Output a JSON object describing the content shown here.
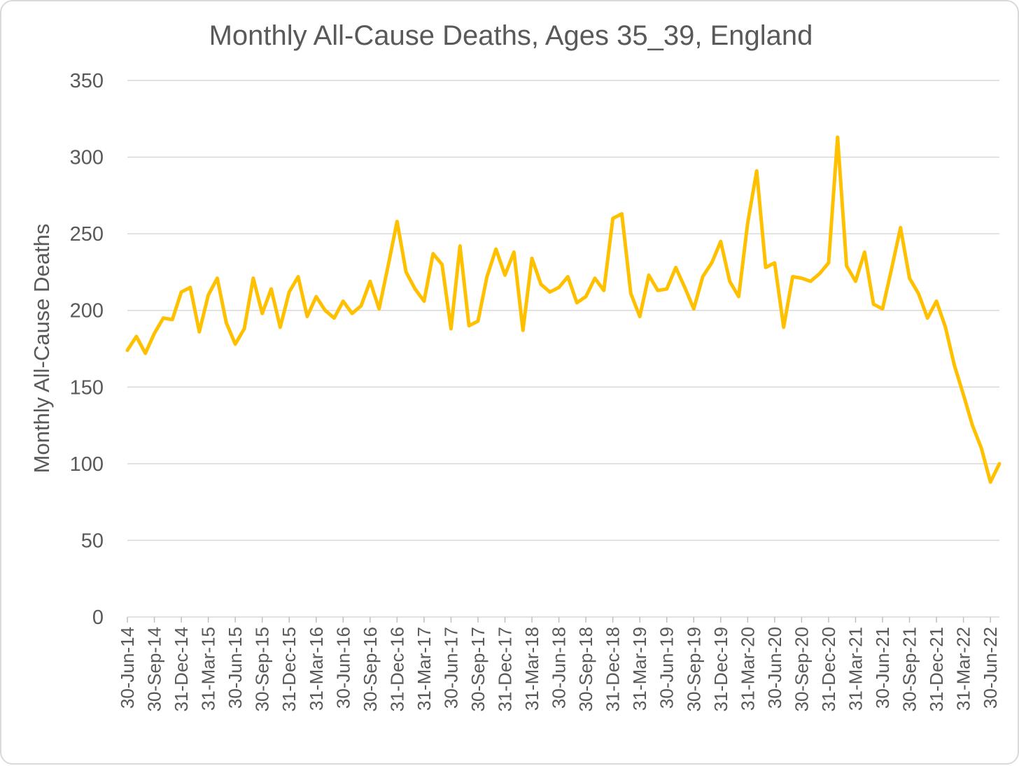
{
  "chart_data": {
    "type": "line",
    "title": "Monthly All-Cause Deaths, Ages 35_39, England",
    "xlabel": "",
    "ylabel": "Monthly All-Cause Deaths",
    "ylim": [
      0,
      350
    ],
    "yticks": [
      0,
      50,
      100,
      150,
      200,
      250,
      300,
      350
    ],
    "grid": true,
    "legend": "none",
    "line_color": "#FFC000",
    "x_tick_labels": [
      "30-Jun-14",
      "30-Sep-14",
      "31-Dec-14",
      "31-Mar-15",
      "30-Jun-15",
      "30-Sep-15",
      "31-Dec-15",
      "31-Mar-16",
      "30-Jun-16",
      "30-Sep-16",
      "31-Dec-16",
      "31-Mar-17",
      "30-Jun-17",
      "30-Sep-17",
      "31-Dec-17",
      "31-Mar-18",
      "30-Jun-18",
      "30-Sep-18",
      "31-Dec-18",
      "31-Mar-19",
      "30-Jun-19",
      "30-Sep-19",
      "31-Dec-19",
      "31-Mar-20",
      "30-Jun-20",
      "30-Sep-20",
      "31-Dec-20",
      "31-Mar-21",
      "30-Jun-21",
      "30-Sep-21",
      "31-Dec-21",
      "31-Mar-22",
      "30-Jun-22"
    ],
    "x": [
      "30-Jun-14",
      "31-Jul-14",
      "31-Aug-14",
      "30-Sep-14",
      "31-Oct-14",
      "30-Nov-14",
      "31-Dec-14",
      "31-Jan-15",
      "28-Feb-15",
      "31-Mar-15",
      "30-Apr-15",
      "31-May-15",
      "30-Jun-15",
      "31-Jul-15",
      "31-Aug-15",
      "30-Sep-15",
      "31-Oct-15",
      "30-Nov-15",
      "31-Dec-15",
      "31-Jan-16",
      "29-Feb-16",
      "31-Mar-16",
      "30-Apr-16",
      "31-May-16",
      "30-Jun-16",
      "31-Jul-16",
      "31-Aug-16",
      "30-Sep-16",
      "31-Oct-16",
      "30-Nov-16",
      "31-Dec-16",
      "31-Jan-17",
      "28-Feb-17",
      "31-Mar-17",
      "30-Apr-17",
      "31-May-17",
      "30-Jun-17",
      "31-Jul-17",
      "31-Aug-17",
      "30-Sep-17",
      "31-Oct-17",
      "30-Nov-17",
      "31-Dec-17",
      "31-Jan-18",
      "28-Feb-18",
      "31-Mar-18",
      "30-Apr-18",
      "31-May-18",
      "30-Jun-18",
      "31-Jul-18",
      "31-Aug-18",
      "30-Sep-18",
      "31-Oct-18",
      "30-Nov-18",
      "31-Dec-18",
      "31-Jan-19",
      "28-Feb-19",
      "31-Mar-19",
      "30-Apr-19",
      "31-May-19",
      "30-Jun-19",
      "31-Jul-19",
      "31-Aug-19",
      "30-Sep-19",
      "31-Oct-19",
      "30-Nov-19",
      "31-Dec-19",
      "31-Jan-20",
      "29-Feb-20",
      "31-Mar-20",
      "30-Apr-20",
      "31-May-20",
      "30-Jun-20",
      "31-Jul-20",
      "31-Aug-20",
      "30-Sep-20",
      "31-Oct-20",
      "30-Nov-20",
      "31-Dec-20",
      "31-Jan-21",
      "28-Feb-21",
      "31-Mar-21",
      "30-Apr-21",
      "31-May-21",
      "30-Jun-21",
      "31-Jul-21",
      "31-Aug-21",
      "30-Sep-21",
      "31-Oct-21",
      "30-Nov-21",
      "31-Dec-21",
      "31-Jan-22",
      "28-Feb-22",
      "31-Mar-22",
      "30-Apr-22",
      "31-May-22",
      "30-Jun-22",
      "31-Jul-22"
    ],
    "series": [
      {
        "name": "",
        "values": [
          174,
          183,
          172,
          185,
          195,
          194,
          212,
          215,
          186,
          210,
          221,
          192,
          178,
          188,
          221,
          198,
          214,
          189,
          212,
          222,
          196,
          209,
          200,
          195,
          206,
          198,
          203,
          219,
          201,
          229,
          258,
          225,
          214,
          206,
          237,
          230,
          188,
          242,
          190,
          193,
          222,
          240,
          223,
          238,
          187,
          234,
          217,
          212,
          215,
          222,
          205,
          209,
          221,
          213,
          260,
          263,
          211,
          196,
          223,
          213,
          214,
          228,
          215,
          201,
          222,
          231,
          245,
          219,
          209,
          257,
          291,
          228,
          231,
          189,
          222,
          221,
          219,
          224,
          231,
          313,
          229,
          219,
          238,
          204,
          201,
          227,
          254,
          221,
          211,
          195,
          206,
          189,
          164,
          145,
          125,
          110,
          88,
          100
        ]
      }
    ]
  }
}
